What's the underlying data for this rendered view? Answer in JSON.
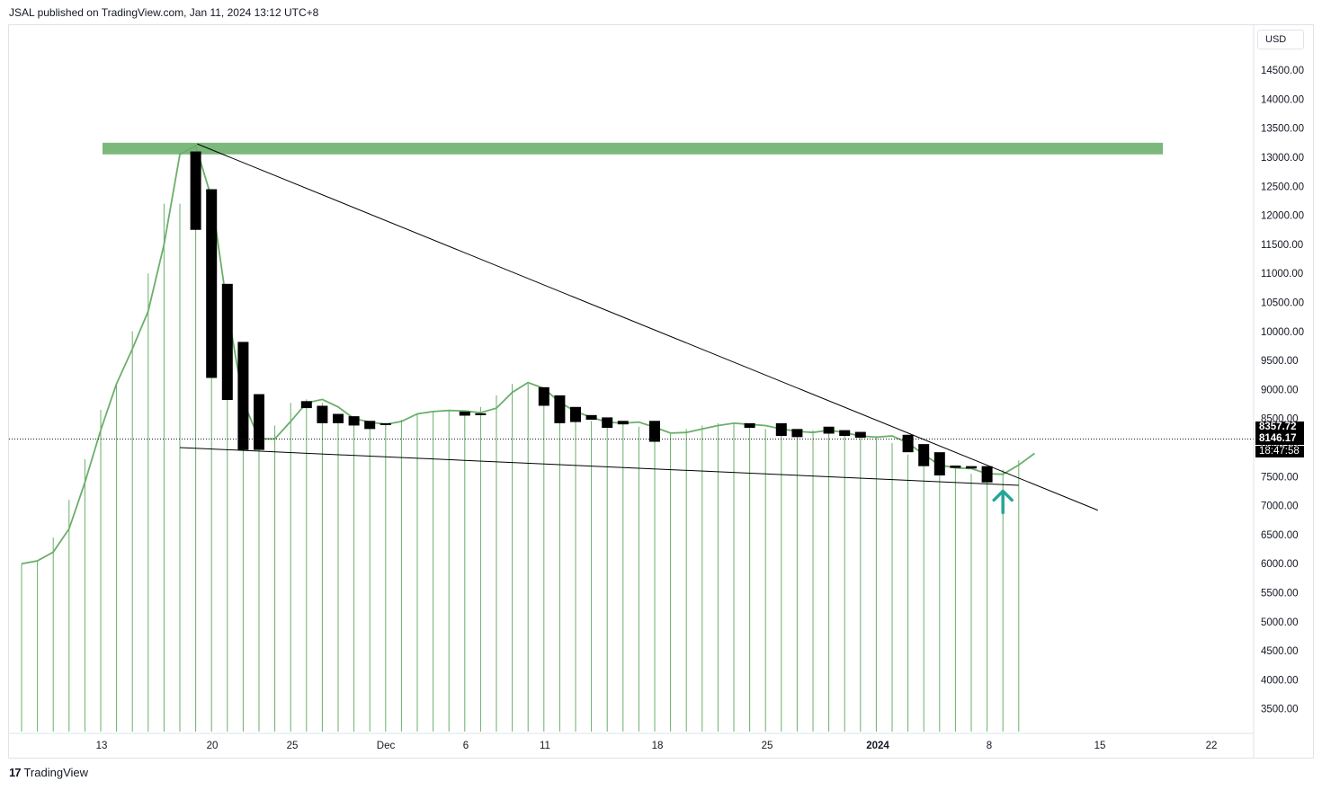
{
  "header": {
    "publisher_line": "JSAL published on TradingView.com, Jan 11, 2024 13:12 UTC+8"
  },
  "footer": {
    "brand": "TradingView",
    "logo_text": "17"
  },
  "price_axis": {
    "currency": "USD",
    "ticks": [
      "14500.00",
      "14000.00",
      "13500.00",
      "13000.00",
      "12500.00",
      "12000.00",
      "11500.00",
      "11000.00",
      "10500.00",
      "10000.00",
      "9500.00",
      "9000.00",
      "8500.00",
      "8000.00",
      "7500.00",
      "7000.00",
      "6500.00",
      "6000.00",
      "5500.00",
      "5000.00",
      "4500.00",
      "4000.00",
      "3500.00"
    ],
    "last_price": "8357.72",
    "current_price": "8146.17",
    "countdown": "18:47:58"
  },
  "time_axis": {
    "labels": [
      "13",
      "20",
      "25",
      "Dec",
      "6",
      "11",
      "18",
      "25",
      "2024",
      "8",
      "15",
      "22"
    ]
  },
  "colors": {
    "accent_green": "#6aaf6a",
    "resistance_zone": "#7cb87c",
    "arrow": "#26a69a",
    "candle": "#000000"
  },
  "chart_data": {
    "type": "candlestick",
    "ylim": [
      3000,
      14800
    ],
    "x_range": [
      0,
      78
    ],
    "resistance_zone": [
      13050,
      13250
    ],
    "current_price_line": 8146.17,
    "candles": [
      {
        "x": 11,
        "o": 13100,
        "c": 11750
      },
      {
        "x": 12,
        "o": 12450,
        "c": 9200
      },
      {
        "x": 13,
        "o": 10820,
        "c": 8820
      },
      {
        "x": 14,
        "o": 9820,
        "c": 7960
      },
      {
        "x": 15,
        "o": 8920,
        "c": 7960
      },
      {
        "x": 18,
        "o": 8800,
        "c": 8680
      },
      {
        "x": 19,
        "o": 8720,
        "c": 8420
      },
      {
        "x": 20,
        "o": 8580,
        "c": 8420
      },
      {
        "x": 21,
        "o": 8540,
        "c": 8380
      },
      {
        "x": 22,
        "o": 8460,
        "c": 8320
      },
      {
        "x": 23,
        "o": 8420,
        "c": 8390
      },
      {
        "x": 28,
        "o": 8620,
        "c": 8550
      },
      {
        "x": 29,
        "o": 8590,
        "c": 8570
      },
      {
        "x": 33,
        "o": 9040,
        "c": 8720
      },
      {
        "x": 34,
        "o": 8900,
        "c": 8420
      },
      {
        "x": 35,
        "o": 8700,
        "c": 8440
      },
      {
        "x": 36,
        "o": 8560,
        "c": 8480
      },
      {
        "x": 37,
        "o": 8520,
        "c": 8340
      },
      {
        "x": 38,
        "o": 8460,
        "c": 8400
      },
      {
        "x": 40,
        "o": 8460,
        "c": 8100
      },
      {
        "x": 46,
        "o": 8420,
        "c": 8340
      },
      {
        "x": 48,
        "o": 8420,
        "c": 8200
      },
      {
        "x": 49,
        "o": 8320,
        "c": 8180
      },
      {
        "x": 51,
        "o": 8360,
        "c": 8240
      },
      {
        "x": 52,
        "o": 8300,
        "c": 8200
      },
      {
        "x": 53,
        "o": 8270,
        "c": 8170
      },
      {
        "x": 56,
        "o": 8220,
        "c": 7920
      },
      {
        "x": 57,
        "o": 8060,
        "c": 7680
      },
      {
        "x": 58,
        "o": 7920,
        "c": 7520
      },
      {
        "x": 59,
        "o": 7690,
        "c": 7650
      },
      {
        "x": 60,
        "o": 7680,
        "c": 7640
      },
      {
        "x": 61,
        "o": 7680,
        "c": 7400
      }
    ],
    "line": [
      {
        "x": 0,
        "y": 6000
      },
      {
        "x": 1,
        "y": 6050
      },
      {
        "x": 2,
        "y": 6200
      },
      {
        "x": 3,
        "y": 6600
      },
      {
        "x": 4,
        "y": 7400
      },
      {
        "x": 5,
        "y": 8300
      },
      {
        "x": 6,
        "y": 9100
      },
      {
        "x": 7,
        "y": 9700
      },
      {
        "x": 8,
        "y": 10350
      },
      {
        "x": 9,
        "y": 11500
      },
      {
        "x": 10,
        "y": 13050
      },
      {
        "x": 11,
        "y": 13200
      },
      {
        "x": 12,
        "y": 12300
      },
      {
        "x": 13,
        "y": 10400
      },
      {
        "x": 14,
        "y": 8800
      },
      {
        "x": 15,
        "y": 8150
      },
      {
        "x": 16,
        "y": 8150
      },
      {
        "x": 17,
        "y": 8450
      },
      {
        "x": 18,
        "y": 8770
      },
      {
        "x": 19,
        "y": 8830
      },
      {
        "x": 20,
        "y": 8700
      },
      {
        "x": 21,
        "y": 8500
      },
      {
        "x": 22,
        "y": 8440
      },
      {
        "x": 23,
        "y": 8400
      },
      {
        "x": 24,
        "y": 8450
      },
      {
        "x": 25,
        "y": 8580
      },
      {
        "x": 26,
        "y": 8620
      },
      {
        "x": 27,
        "y": 8640
      },
      {
        "x": 28,
        "y": 8630
      },
      {
        "x": 29,
        "y": 8600
      },
      {
        "x": 30,
        "y": 8680
      },
      {
        "x": 31,
        "y": 8950
      },
      {
        "x": 32,
        "y": 9120
      },
      {
        "x": 33,
        "y": 9020
      },
      {
        "x": 34,
        "y": 8780
      },
      {
        "x": 35,
        "y": 8620
      },
      {
        "x": 36,
        "y": 8520
      },
      {
        "x": 37,
        "y": 8440
      },
      {
        "x": 38,
        "y": 8420
      },
      {
        "x": 39,
        "y": 8440
      },
      {
        "x": 40,
        "y": 8350
      },
      {
        "x": 41,
        "y": 8250
      },
      {
        "x": 42,
        "y": 8260
      },
      {
        "x": 43,
        "y": 8320
      },
      {
        "x": 44,
        "y": 8380
      },
      {
        "x": 45,
        "y": 8420
      },
      {
        "x": 46,
        "y": 8400
      },
      {
        "x": 47,
        "y": 8380
      },
      {
        "x": 48,
        "y": 8320
      },
      {
        "x": 49,
        "y": 8280
      },
      {
        "x": 50,
        "y": 8260
      },
      {
        "x": 51,
        "y": 8300
      },
      {
        "x": 52,
        "y": 8260
      },
      {
        "x": 53,
        "y": 8200
      },
      {
        "x": 54,
        "y": 8180
      },
      {
        "x": 55,
        "y": 8200
      },
      {
        "x": 56,
        "y": 8080
      },
      {
        "x": 57,
        "y": 7880
      },
      {
        "x": 58,
        "y": 7700
      },
      {
        "x": 59,
        "y": 7650
      },
      {
        "x": 60,
        "y": 7640
      },
      {
        "x": 61,
        "y": 7550
      },
      {
        "x": 62,
        "y": 7540
      },
      {
        "x": 63,
        "y": 7700
      },
      {
        "x": 64,
        "y": 7900
      }
    ],
    "volume_bars": [
      {
        "x": 0,
        "y": 6000
      },
      {
        "x": 1,
        "y": 6050
      },
      {
        "x": 2,
        "y": 6450
      },
      {
        "x": 3,
        "y": 7100
      },
      {
        "x": 4,
        "y": 7800
      },
      {
        "x": 5,
        "y": 8650
      },
      {
        "x": 6,
        "y": 9100
      },
      {
        "x": 7,
        "y": 10000
      },
      {
        "x": 8,
        "y": 11000
      },
      {
        "x": 9,
        "y": 12200
      },
      {
        "x": 10,
        "y": 12200
      },
      {
        "x": 11,
        "y": 13100
      },
      {
        "x": 12,
        "y": 12200
      },
      {
        "x": 13,
        "y": 9800
      },
      {
        "x": 14,
        "y": 8820
      },
      {
        "x": 15,
        "y": 8320
      },
      {
        "x": 16,
        "y": 8380
      },
      {
        "x": 17,
        "y": 8770
      },
      {
        "x": 18,
        "y": 8830
      },
      {
        "x": 19,
        "y": 8770
      },
      {
        "x": 20,
        "y": 8550
      },
      {
        "x": 21,
        "y": 8520
      },
      {
        "x": 22,
        "y": 8420
      },
      {
        "x": 23,
        "y": 8400
      },
      {
        "x": 24,
        "y": 8480
      },
      {
        "x": 25,
        "y": 8580
      },
      {
        "x": 26,
        "y": 8620
      },
      {
        "x": 27,
        "y": 8650
      },
      {
        "x": 28,
        "y": 8640
      },
      {
        "x": 29,
        "y": 8700
      },
      {
        "x": 30,
        "y": 8900
      },
      {
        "x": 31,
        "y": 9100
      },
      {
        "x": 32,
        "y": 9100
      },
      {
        "x": 33,
        "y": 8870
      },
      {
        "x": 34,
        "y": 8600
      },
      {
        "x": 35,
        "y": 8520
      },
      {
        "x": 36,
        "y": 8460
      },
      {
        "x": 37,
        "y": 8430
      },
      {
        "x": 38,
        "y": 8420
      },
      {
        "x": 39,
        "y": 8360
      },
      {
        "x": 40,
        "y": 8260
      },
      {
        "x": 41,
        "y": 8260
      },
      {
        "x": 42,
        "y": 8320
      },
      {
        "x": 43,
        "y": 8380
      },
      {
        "x": 44,
        "y": 8420
      },
      {
        "x": 45,
        "y": 8410
      },
      {
        "x": 46,
        "y": 8380
      },
      {
        "x": 47,
        "y": 8320
      },
      {
        "x": 48,
        "y": 8280
      },
      {
        "x": 49,
        "y": 8260
      },
      {
        "x": 50,
        "y": 8300
      },
      {
        "x": 51,
        "y": 8260
      },
      {
        "x": 52,
        "y": 8200
      },
      {
        "x": 53,
        "y": 8180
      },
      {
        "x": 54,
        "y": 8200
      },
      {
        "x": 55,
        "y": 8080
      },
      {
        "x": 56,
        "y": 7880
      },
      {
        "x": 57,
        "y": 7700
      },
      {
        "x": 58,
        "y": 7650
      },
      {
        "x": 59,
        "y": 7640
      },
      {
        "x": 60,
        "y": 7550
      },
      {
        "x": 61,
        "y": 7540
      },
      {
        "x": 62,
        "y": 7620
      },
      {
        "x": 63,
        "y": 7780
      }
    ],
    "trendlines": [
      {
        "name": "descending-resistance",
        "x1": 11.1,
        "y1": 13230,
        "x2": 68,
        "y2": 6920
      },
      {
        "name": "support",
        "x1": 10,
        "y1": 8000,
        "x2": 63,
        "y2": 7350
      }
    ],
    "arrow": {
      "x": 62,
      "y_base": 6880,
      "y_tip": 7250
    }
  }
}
